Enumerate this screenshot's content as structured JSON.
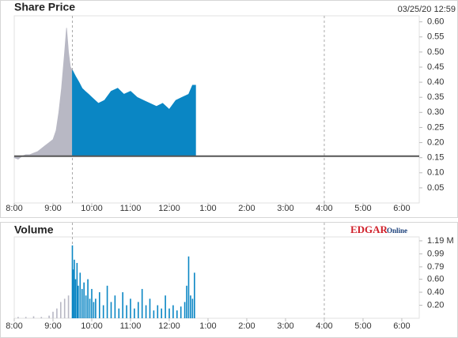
{
  "chart_data": [
    {
      "type": "area",
      "title": "Share Price",
      "subtitle": "03/25/20 12:59",
      "xlim": [
        8,
        18.45
      ],
      "xticks": [
        {
          "value": 8,
          "label": "8:00"
        },
        {
          "value": 9,
          "label": "9:00"
        },
        {
          "value": 10,
          "label": "10:00"
        },
        {
          "value": 11,
          "label": "11:00"
        },
        {
          "value": 12,
          "label": "12:00"
        },
        {
          "value": 13,
          "label": "1:00"
        },
        {
          "value": 14,
          "label": "2:00"
        },
        {
          "value": 15,
          "label": "3:00"
        },
        {
          "value": 16,
          "label": "4:00"
        },
        {
          "value": 17,
          "label": "5:00"
        },
        {
          "value": 18,
          "label": "6:00"
        }
      ],
      "ylim": [
        0,
        0.62
      ],
      "yticks": [
        {
          "value": 0.05,
          "label": "0.05"
        },
        {
          "value": 0.1,
          "label": "0.10"
        },
        {
          "value": 0.15,
          "label": "0.15"
        },
        {
          "value": 0.2,
          "label": "0.20"
        },
        {
          "value": 0.25,
          "label": "0.25"
        },
        {
          "value": 0.3,
          "label": "0.30"
        },
        {
          "value": 0.35,
          "label": "0.35"
        },
        {
          "value": 0.4,
          "label": "0.40"
        },
        {
          "value": 0.45,
          "label": "0.45"
        },
        {
          "value": 0.5,
          "label": "0.50"
        },
        {
          "value": 0.55,
          "label": "0.55"
        },
        {
          "value": 0.6,
          "label": "0.60"
        }
      ],
      "reference_line": 0.155,
      "markers": [
        9.5,
        16
      ],
      "series": [
        {
          "color": "#b8b8c4",
          "x": [
            8,
            8.1,
            8.2,
            8.3,
            8.4,
            8.5,
            8.6,
            8.7,
            8.8,
            8.9,
            9,
            9.08,
            9.15,
            9.22,
            9.3,
            9.35,
            9.4,
            9.45,
            9.5
          ],
          "values": [
            0.15,
            0.145,
            0.155,
            0.16,
            0.16,
            0.165,
            0.17,
            0.18,
            0.19,
            0.2,
            0.21,
            0.24,
            0.3,
            0.38,
            0.5,
            0.58,
            0.5,
            0.45,
            0.44
          ]
        },
        {
          "color": "#0a86c4",
          "x": [
            9.5,
            9.58,
            9.67,
            9.75,
            9.83,
            9.92,
            10,
            10.17,
            10.33,
            10.5,
            10.67,
            10.83,
            11,
            11.17,
            11.33,
            11.5,
            11.67,
            11.83,
            12,
            12.17,
            12.33,
            12.5,
            12.6,
            12.68
          ],
          "values": [
            0.44,
            0.42,
            0.4,
            0.38,
            0.37,
            0.36,
            0.35,
            0.33,
            0.34,
            0.37,
            0.38,
            0.36,
            0.37,
            0.35,
            0.34,
            0.33,
            0.32,
            0.33,
            0.31,
            0.34,
            0.35,
            0.36,
            0.39,
            0.39
          ]
        }
      ]
    },
    {
      "type": "bar",
      "title": "Volume",
      "logo": "EDGAR",
      "logo_sub": "Online",
      "xlim": [
        8,
        18.45
      ],
      "xticks": [
        {
          "value": 8,
          "label": "8:00"
        },
        {
          "value": 9,
          "label": "9:00"
        },
        {
          "value": 10,
          "label": "10:00"
        },
        {
          "value": 11,
          "label": "11:00"
        },
        {
          "value": 12,
          "label": "12:00"
        },
        {
          "value": 13,
          "label": "1:00"
        },
        {
          "value": 14,
          "label": "2:00"
        },
        {
          "value": 15,
          "label": "3:00"
        },
        {
          "value": 16,
          "label": "4:00"
        },
        {
          "value": 17,
          "label": "5:00"
        },
        {
          "value": 18,
          "label": "6:00"
        }
      ],
      "ylim": [
        0,
        1.25
      ],
      "yticks": [
        {
          "value": 0.2,
          "label": "0.20"
        },
        {
          "value": 0.4,
          "label": "0.40"
        },
        {
          "value": 0.6,
          "label": "0.60"
        },
        {
          "value": 0.79,
          "label": "0.79"
        },
        {
          "value": 0.99,
          "label": "0.99"
        },
        {
          "value": 1.19,
          "label": "1.19 M"
        }
      ],
      "markers": [
        9.5,
        16
      ],
      "series": [
        {
          "color": "#b8b8c4",
          "x": [
            8.1,
            8.3,
            8.5,
            8.7,
            8.9,
            9.0,
            9.1,
            9.2,
            9.3,
            9.4
          ],
          "values": [
            0.02,
            0.02,
            0.03,
            0.02,
            0.04,
            0.1,
            0.15,
            0.25,
            0.3,
            0.35
          ]
        },
        {
          "color": "#0a86c4",
          "x": [
            9.5,
            9.52,
            9.55,
            9.58,
            9.62,
            9.65,
            9.7,
            9.75,
            9.8,
            9.85,
            9.9,
            9.95,
            10.0,
            10.05,
            10.1,
            10.2,
            10.3,
            10.4,
            10.5,
            10.6,
            10.7,
            10.8,
            10.9,
            11.0,
            11.1,
            11.2,
            11.3,
            11.4,
            11.5,
            11.6,
            11.7,
            11.8,
            11.9,
            12.0,
            12.1,
            12.2,
            12.3,
            12.4,
            12.45,
            12.5,
            12.55,
            12.6,
            12.65
          ],
          "values": [
            1.12,
            0.75,
            0.9,
            0.6,
            0.85,
            0.5,
            0.7,
            0.45,
            0.55,
            0.35,
            0.6,
            0.3,
            0.45,
            0.25,
            0.3,
            0.4,
            0.2,
            0.5,
            0.25,
            0.35,
            0.15,
            0.4,
            0.2,
            0.3,
            0.15,
            0.25,
            0.45,
            0.2,
            0.3,
            0.12,
            0.2,
            0.15,
            0.35,
            0.15,
            0.2,
            0.12,
            0.18,
            0.25,
            0.5,
            0.95,
            0.35,
            0.3,
            0.7
          ]
        }
      ]
    }
  ]
}
